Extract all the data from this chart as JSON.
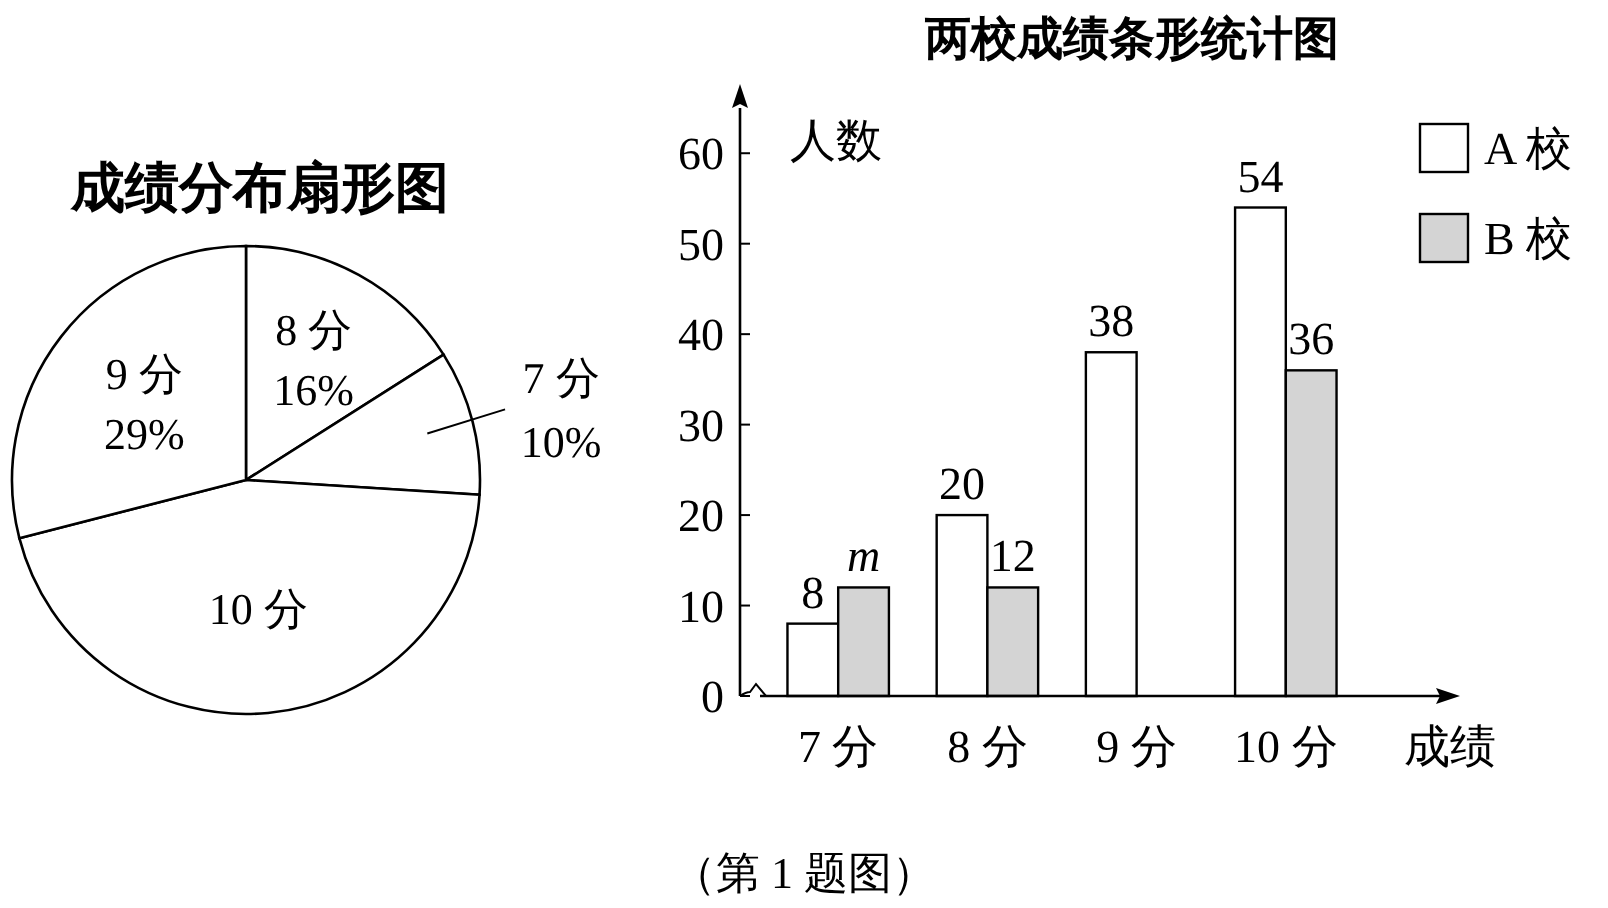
{
  "chart_data": [
    {
      "type": "pie",
      "title": "成绩分布扇形图",
      "categories": [
        "8 分",
        "7 分",
        "10 分",
        "9 分"
      ],
      "values": [
        16,
        10,
        45,
        29
      ],
      "colors": [
        "#ffffff",
        "#ffffff",
        "#ffffff",
        "#ffffff"
      ],
      "value_labels": [
        "16%",
        "10%",
        null,
        "29%"
      ]
    },
    {
      "type": "bar",
      "title": "两校成绩条形统计图",
      "xlabel": "成绩",
      "ylabel": "人数",
      "categories": [
        "7 分",
        "8 分",
        "9 分",
        "10 分"
      ],
      "series": [
        {
          "name": "A 校",
          "color": "#ffffff",
          "values": [
            8,
            20,
            38,
            54
          ],
          "value_labels": [
            "8",
            "20",
            "38",
            "54"
          ]
        },
        {
          "name": "B 校",
          "color": "#d4d4d4",
          "values": [
            12,
            12,
            0,
            36
          ],
          "value_labels": [
            "m",
            "12",
            null,
            "36"
          ]
        }
      ],
      "ylim": [
        0,
        65
      ],
      "yticks": [
        0,
        10,
        20,
        30,
        40,
        50,
        60
      ],
      "legend": "top right",
      "annotations": [
        "（第 1 题图）"
      ]
    }
  ]
}
